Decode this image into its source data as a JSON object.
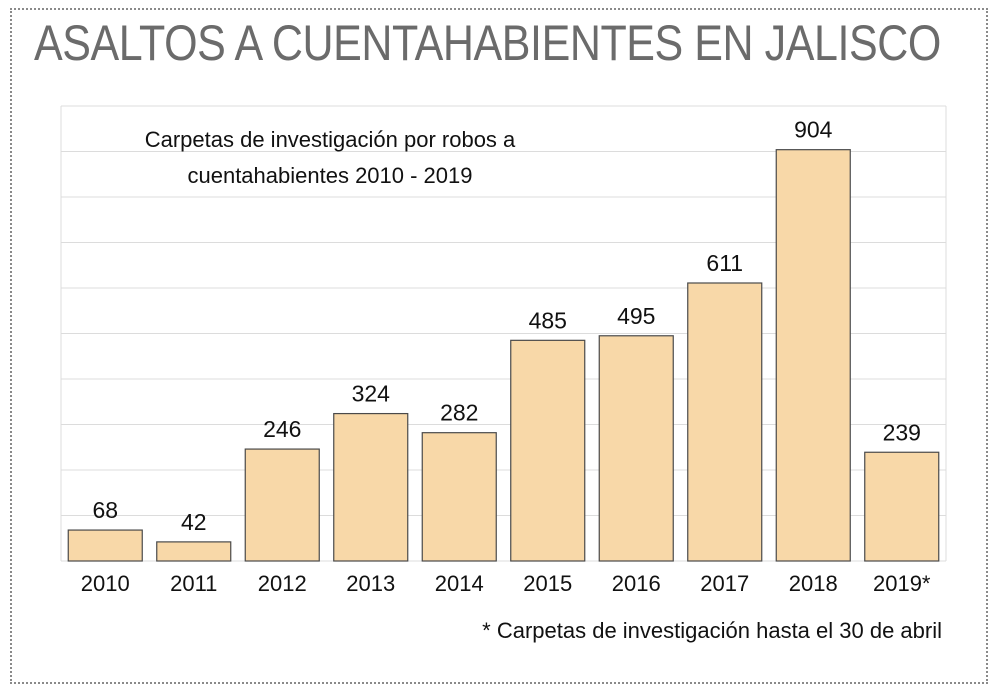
{
  "title": "ASALTOS A CUENTAHABIENTES EN JALISCO",
  "footnote": "* Carpetas de investigación hasta el 30 de abril",
  "colors": {
    "bar_fill": "#f8d8a8",
    "bar_stroke": "#4a4a4a",
    "grid": "#dcdcdc",
    "background": "#ffffff"
  },
  "chart_data": {
    "type": "bar",
    "title_lines": [
      "Carpetas de investigación por robos a",
      "cuentahabientes 2010 - 2019"
    ],
    "categories": [
      "2010",
      "2011",
      "2012",
      "2013",
      "2014",
      "2015",
      "2016",
      "2017",
      "2018",
      "2019*"
    ],
    "values": [
      68,
      42,
      246,
      324,
      282,
      485,
      495,
      611,
      904,
      239
    ],
    "data_labels": [
      "68",
      "42",
      "246",
      "324",
      "282",
      "485",
      "495",
      "611",
      "904",
      "239"
    ],
    "xlabel": "",
    "ylabel": "",
    "ylim": [
      0,
      1000
    ],
    "grid": true,
    "legend": "none"
  }
}
